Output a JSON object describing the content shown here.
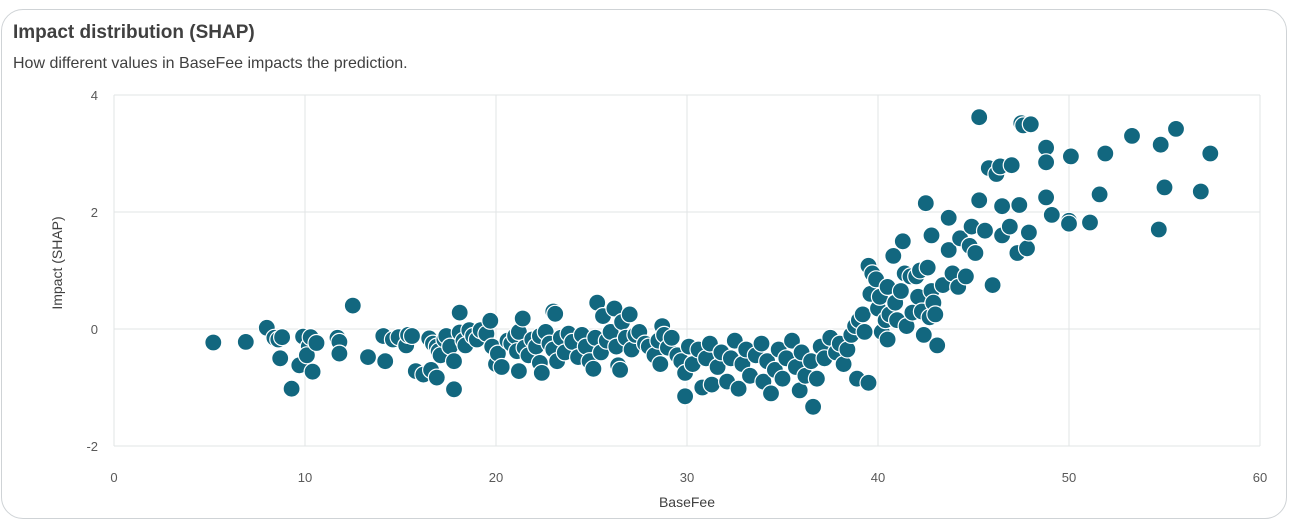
{
  "title": "Impact distribution (SHAP)",
  "subtitle": "How different values in BaseFee impacts the prediction.",
  "chart_data": {
    "type": "scatter",
    "xlabel": "BaseFee",
    "ylabel": "Impact (SHAP)",
    "xlim": [
      0,
      60
    ],
    "ylim": [
      -2,
      4
    ],
    "xticks": [
      "0",
      "10",
      "20",
      "30",
      "40",
      "50",
      "60"
    ],
    "yticks": [
      "4",
      "2",
      "0",
      "-2"
    ],
    "grid": true,
    "color": "#12677f",
    "points": [
      [
        5.2,
        -0.23
      ],
      [
        6.9,
        -0.22
      ],
      [
        8,
        0.02
      ],
      [
        8.4,
        -0.15
      ],
      [
        8.6,
        -0.18
      ],
      [
        8.8,
        -0.14
      ],
      [
        8.7,
        -0.5
      ],
      [
        9.3,
        -1.02
      ],
      [
        9.7,
        -0.62
      ],
      [
        9.9,
        -0.13
      ],
      [
        10.2,
        -0.3
      ],
      [
        10.1,
        -0.45
      ],
      [
        10.4,
        -0.73
      ],
      [
        10.3,
        -0.14
      ],
      [
        10.6,
        -0.24
      ],
      [
        11.7,
        -0.15
      ],
      [
        11.8,
        -0.22
      ],
      [
        11.8,
        -0.42
      ],
      [
        12.5,
        0.4
      ],
      [
        13.3,
        -0.48
      ],
      [
        14.1,
        -0.12
      ],
      [
        14.2,
        -0.55
      ],
      [
        14.6,
        -0.18
      ],
      [
        14.9,
        -0.14
      ],
      [
        15.3,
        -0.28
      ],
      [
        15.4,
        -0.1
      ],
      [
        15.6,
        -0.12
      ],
      [
        15.8,
        -0.72
      ],
      [
        16.2,
        -0.78
      ],
      [
        16.5,
        -0.16
      ],
      [
        16.7,
        -0.25
      ],
      [
        16.6,
        -0.7
      ],
      [
        16.9,
        -0.3
      ],
      [
        16.9,
        -0.83
      ],
      [
        17,
        -0.38
      ],
      [
        17.1,
        -0.45
      ],
      [
        17.3,
        -0.18
      ],
      [
        17.4,
        -0.12
      ],
      [
        17.6,
        -0.3
      ],
      [
        17.8,
        -0.55
      ],
      [
        17.8,
        -1.03
      ],
      [
        18.1,
        -0.06
      ],
      [
        18.1,
        0.28
      ],
      [
        18.3,
        -0.2
      ],
      [
        18.4,
        -0.28
      ],
      [
        18.6,
        -0.02
      ],
      [
        18.8,
        -0.12
      ],
      [
        19,
        -0.18
      ],
      [
        19.2,
        -0.02
      ],
      [
        19.5,
        -0.08
      ],
      [
        19.7,
        0.14
      ],
      [
        19.8,
        -0.3
      ],
      [
        20,
        -0.6
      ],
      [
        20.1,
        -0.42
      ],
      [
        20.3,
        -0.65
      ],
      [
        20.6,
        -0.2
      ],
      [
        20.8,
        -0.25
      ],
      [
        21,
        -0.12
      ],
      [
        21.2,
        -0.05
      ],
      [
        21.1,
        -0.38
      ],
      [
        21.2,
        -0.72
      ],
      [
        21.4,
        0.18
      ],
      [
        21.5,
        -0.32
      ],
      [
        21.7,
        -0.45
      ],
      [
        21.9,
        -0.18
      ],
      [
        22.1,
        -0.3
      ],
      [
        22.3,
        -0.12
      ],
      [
        22.3,
        -0.58
      ],
      [
        22.4,
        -0.75
      ],
      [
        22.6,
        -0.05
      ],
      [
        22.8,
        -0.25
      ],
      [
        23,
        -0.35
      ],
      [
        23,
        0.3
      ],
      [
        23.1,
        0.26
      ],
      [
        23.2,
        -0.55
      ],
      [
        23.4,
        -0.15
      ],
      [
        23.6,
        -0.4
      ],
      [
        23.8,
        -0.08
      ],
      [
        24,
        -0.22
      ],
      [
        24.3,
        -0.48
      ],
      [
        24.5,
        -0.1
      ],
      [
        24.7,
        -0.3
      ],
      [
        24.9,
        -0.55
      ],
      [
        25.1,
        -0.68
      ],
      [
        25.2,
        -0.15
      ],
      [
        25.3,
        0.45
      ],
      [
        25.5,
        -0.4
      ],
      [
        25.6,
        0.22
      ],
      [
        25.8,
        -0.2
      ],
      [
        26,
        -0.05
      ],
      [
        26.2,
        0.35
      ],
      [
        26.3,
        -0.3
      ],
      [
        26.4,
        -0.62
      ],
      [
        26.5,
        -0.7
      ],
      [
        26.6,
        0.12
      ],
      [
        26.8,
        -0.15
      ],
      [
        27,
        0.25
      ],
      [
        27.1,
        -0.35
      ],
      [
        27.3,
        -0.1
      ],
      [
        27.5,
        -0.05
      ],
      [
        27.8,
        -0.25
      ],
      [
        28,
        -0.3
      ],
      [
        28.3,
        -0.45
      ],
      [
        28.5,
        -0.2
      ],
      [
        28.6,
        -0.6
      ],
      [
        28.7,
        0.05
      ],
      [
        28.8,
        -0.1
      ],
      [
        29,
        -0.32
      ],
      [
        29.2,
        -0.15
      ],
      [
        29.5,
        -0.45
      ],
      [
        29.7,
        -0.55
      ],
      [
        29.9,
        -0.75
      ],
      [
        29.9,
        -1.15
      ],
      [
        30.1,
        -0.3
      ],
      [
        30.3,
        -0.6
      ],
      [
        30.6,
        -0.35
      ],
      [
        30.8,
        -1.0
      ],
      [
        31,
        -0.5
      ],
      [
        31.2,
        -0.25
      ],
      [
        31.3,
        -0.95
      ],
      [
        31.6,
        -0.65
      ],
      [
        31.8,
        -0.4
      ],
      [
        32.1,
        -0.9
      ],
      [
        32.3,
        -0.5
      ],
      [
        32.5,
        -0.2
      ],
      [
        32.7,
        -1.02
      ],
      [
        32.9,
        -0.6
      ],
      [
        33.1,
        -0.35
      ],
      [
        33.3,
        -0.8
      ],
      [
        33.6,
        -0.45
      ],
      [
        33.9,
        -0.25
      ],
      [
        34,
        -0.9
      ],
      [
        34.2,
        -0.55
      ],
      [
        34.4,
        -1.1
      ],
      [
        34.6,
        -0.7
      ],
      [
        34.8,
        -0.35
      ],
      [
        35,
        -0.85
      ],
      [
        35.2,
        -0.5
      ],
      [
        35.5,
        -0.2
      ],
      [
        35.7,
        -0.65
      ],
      [
        35.9,
        -1.05
      ],
      [
        36,
        -0.4
      ],
      [
        36.2,
        -0.8
      ],
      [
        36.5,
        -0.55
      ],
      [
        36.6,
        -1.33
      ],
      [
        36.8,
        -0.85
      ],
      [
        37,
        -0.3
      ],
      [
        37.2,
        -0.5
      ],
      [
        37.5,
        -0.15
      ],
      [
        37.8,
        -0.4
      ],
      [
        38,
        -0.25
      ],
      [
        38.2,
        -0.6
      ],
      [
        38.4,
        -0.35
      ],
      [
        38.6,
        -0.1
      ],
      [
        38.8,
        0.05
      ],
      [
        38.9,
        -0.85
      ],
      [
        39,
        0.15
      ],
      [
        39.2,
        0.25
      ],
      [
        39.3,
        -0.05
      ],
      [
        39.5,
        -0.92
      ],
      [
        39.5,
        1.08
      ],
      [
        39.6,
        0.6
      ],
      [
        39.7,
        0.95
      ],
      [
        39.9,
        0.85
      ],
      [
        40,
        0.35
      ],
      [
        40.1,
        0.55
      ],
      [
        40.2,
        -0.05
      ],
      [
        40.4,
        0.15
      ],
      [
        40.5,
        0.72
      ],
      [
        40.5,
        -0.18
      ],
      [
        40.6,
        0.25
      ],
      [
        40.8,
        1.25
      ],
      [
        40.9,
        0.45
      ],
      [
        41,
        0.15
      ],
      [
        41.2,
        0.65
      ],
      [
        41.3,
        1.5
      ],
      [
        41.4,
        0.95
      ],
      [
        41.5,
        0.05
      ],
      [
        41.7,
        0.9
      ],
      [
        41.8,
        0.28
      ],
      [
        42,
        0.9
      ],
      [
        42.1,
        0.55
      ],
      [
        42.2,
        1.0
      ],
      [
        42.3,
        0.3
      ],
      [
        42.4,
        -0.1
      ],
      [
        42.5,
        2.15
      ],
      [
        42.6,
        1.05
      ],
      [
        42.7,
        0.2
      ],
      [
        42.8,
        1.6
      ],
      [
        42.8,
        0.65
      ],
      [
        42.9,
        0.45
      ],
      [
        43,
        0.25
      ],
      [
        43.1,
        -0.28
      ],
      [
        43.4,
        0.75
      ],
      [
        43.7,
        1.35
      ],
      [
        43.7,
        1.9
      ],
      [
        43.9,
        0.95
      ],
      [
        44.2,
        0.72
      ],
      [
        44.3,
        1.55
      ],
      [
        44.6,
        0.9
      ],
      [
        44.8,
        1.42
      ],
      [
        44.9,
        1.75
      ],
      [
        45.1,
        1.3
      ],
      [
        45.3,
        2.2
      ],
      [
        45.3,
        3.62
      ],
      [
        45.6,
        1.68
      ],
      [
        45.8,
        2.75
      ],
      [
        46,
        0.75
      ],
      [
        46.2,
        2.65
      ],
      [
        46.4,
        2.78
      ],
      [
        46.5,
        2.1
      ],
      [
        46.5,
        1.6
      ],
      [
        46.9,
        1.75
      ],
      [
        47,
        2.8
      ],
      [
        47.3,
        1.3
      ],
      [
        47.4,
        2.12
      ],
      [
        47.5,
        3.52
      ],
      [
        47.6,
        3.48
      ],
      [
        47.8,
        1.38
      ],
      [
        47.9,
        1.65
      ],
      [
        48,
        3.5
      ],
      [
        48.8,
        3.1
      ],
      [
        48.8,
        2.85
      ],
      [
        48.8,
        2.25
      ],
      [
        49.1,
        1.95
      ],
      [
        50,
        1.85
      ],
      [
        50,
        1.8
      ],
      [
        50.1,
        2.95
      ],
      [
        51.1,
        1.82
      ],
      [
        51.6,
        2.3
      ],
      [
        51.9,
        3.0
      ],
      [
        53.3,
        3.3
      ],
      [
        54.7,
        1.7
      ],
      [
        54.8,
        3.15
      ],
      [
        55,
        2.42
      ],
      [
        55.6,
        3.42
      ],
      [
        56.9,
        2.35
      ],
      [
        57.4,
        3.0
      ]
    ]
  }
}
